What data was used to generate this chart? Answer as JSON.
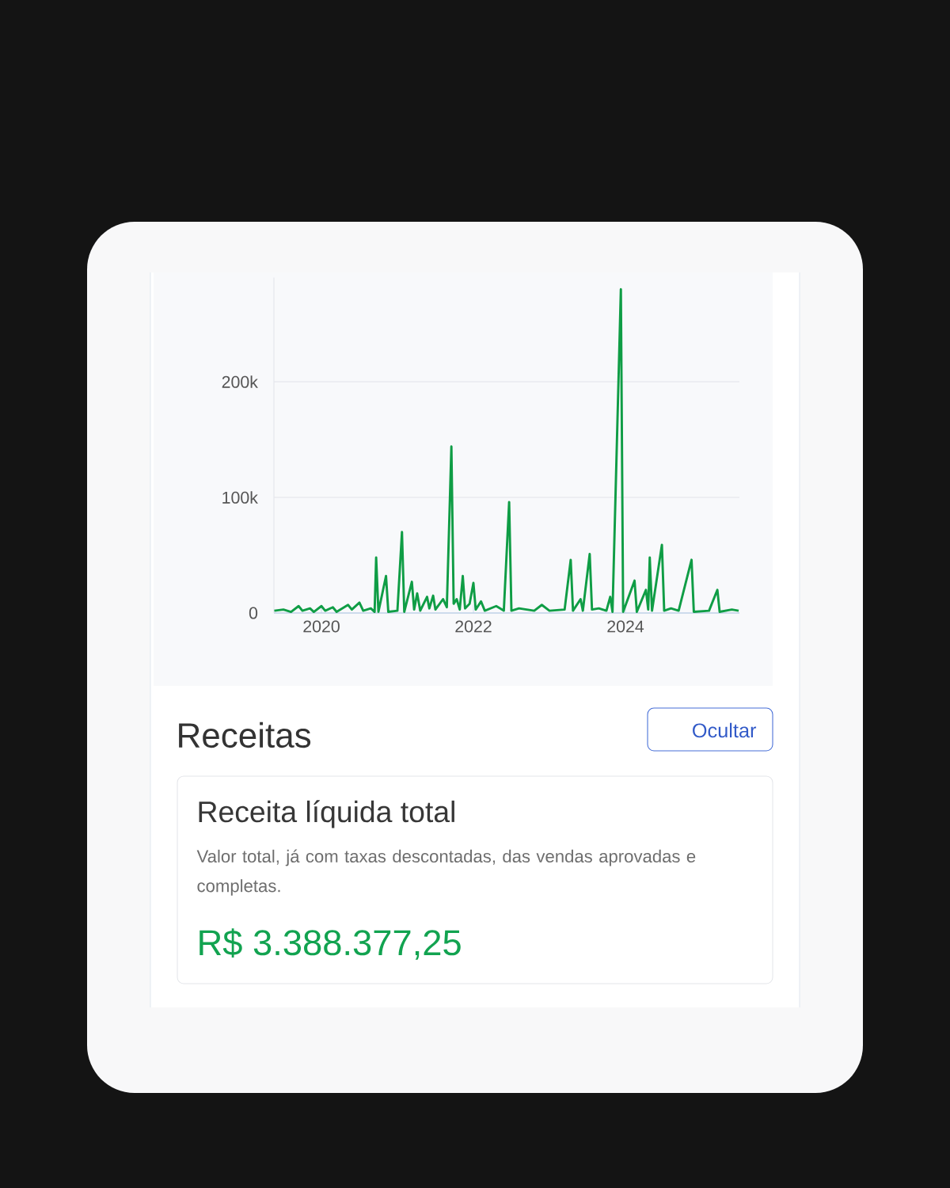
{
  "chart_data": {
    "type": "line",
    "color": "#0f9d45",
    "grid": "y",
    "xlim": [
      2019.375,
      2025.5
    ],
    "ylim": [
      0,
      290000
    ],
    "xticks": [
      2020,
      2022,
      2024
    ],
    "yticks": [
      0,
      {
        "value": 100000,
        "label": "100k"
      },
      {
        "value": 200000,
        "label": "200k"
      }
    ],
    "x": [
      2019.38,
      2019.5,
      2019.6,
      2019.7,
      2019.75,
      2019.85,
      2019.9,
      2020.0,
      2020.05,
      2020.15,
      2020.2,
      2020.35,
      2020.4,
      2020.5,
      2020.55,
      2020.65,
      2020.7,
      2020.72,
      2020.75,
      2020.85,
      2020.88,
      2021.0,
      2021.06,
      2021.09,
      2021.19,
      2021.22,
      2021.26,
      2021.3,
      2021.39,
      2021.42,
      2021.47,
      2021.5,
      2021.6,
      2021.65,
      2021.71,
      2021.74,
      2021.78,
      2021.82,
      2021.86,
      2021.89,
      2021.95,
      2022.0,
      2022.03,
      2022.1,
      2022.15,
      2022.3,
      2022.4,
      2022.47,
      2022.5,
      2022.6,
      2022.8,
      2022.9,
      2023.0,
      2023.2,
      2023.28,
      2023.31,
      2023.41,
      2023.44,
      2023.53,
      2023.56,
      2023.65,
      2023.75,
      2023.8,
      2023.83,
      2023.94,
      2023.97,
      2024.12,
      2024.15,
      2024.27,
      2024.3,
      2024.32,
      2024.35,
      2024.48,
      2024.51,
      2024.6,
      2024.7,
      2024.87,
      2024.9,
      2025.1,
      2025.21,
      2025.24,
      2025.4,
      2025.49
    ],
    "values": [
      2000,
      3000,
      1000,
      6000,
      2000,
      4000,
      1000,
      6000,
      2000,
      5000,
      1000,
      7000,
      3000,
      9000,
      2000,
      4000,
      1000,
      48000,
      1000,
      32000,
      1000,
      2000,
      70000,
      1000,
      27000,
      3000,
      17000,
      2000,
      14000,
      4000,
      15000,
      3000,
      12000,
      5000,
      144000,
      8000,
      12000,
      3000,
      32000,
      4000,
      8000,
      26000,
      3000,
      10000,
      2000,
      6000,
      2000,
      96000,
      2000,
      4000,
      2000,
      7000,
      2000,
      3000,
      46000,
      2000,
      12000,
      2000,
      51000,
      3000,
      4000,
      2000,
      14000,
      1000,
      280000,
      1000,
      28000,
      1000,
      20000,
      3000,
      48000,
      2000,
      59000,
      2000,
      4000,
      2000,
      46000,
      1000,
      2000,
      20000,
      1000,
      3000,
      2000
    ],
    "annotations": [
      "Receitas",
      "Ocultar",
      "Receita líquida total",
      "Valor total, já com taxas descontadas, das vendas aprovadas e completas.",
      "R$ 3.388.377,25"
    ]
  }
}
